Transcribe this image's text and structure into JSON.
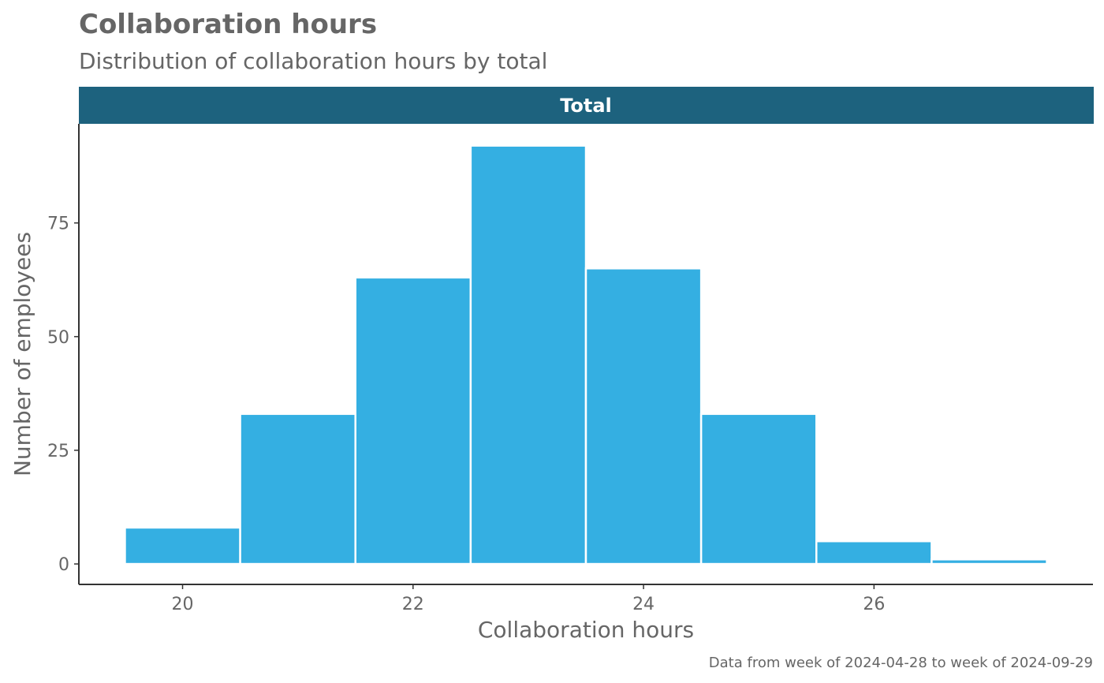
{
  "chart_data": {
    "type": "bar",
    "title": "Collaboration hours",
    "subtitle": "Distribution of collaboration hours by total",
    "facet_label": "Total",
    "xlabel": "Collaboration hours",
    "ylabel": "Number of employees",
    "caption": "Data from week of 2024-04-28 to week of 2024-09-29",
    "categories": [
      20,
      21,
      22,
      23,
      24,
      25,
      26,
      27
    ],
    "values": [
      8,
      33,
      63,
      92,
      65,
      33,
      5,
      1
    ],
    "bin_width": 1,
    "xlim": [
      19.1,
      27.9
    ],
    "ylim": [
      -4.5,
      96.8
    ],
    "x_ticks": [
      20,
      22,
      24,
      26
    ],
    "y_ticks": [
      0,
      25,
      50,
      75
    ],
    "grid": false,
    "colors": {
      "bar": "#34AFE2",
      "bar_outline": "#ffffff",
      "strip": "#1D627E",
      "text": "#666666",
      "axis": "#333333"
    }
  }
}
